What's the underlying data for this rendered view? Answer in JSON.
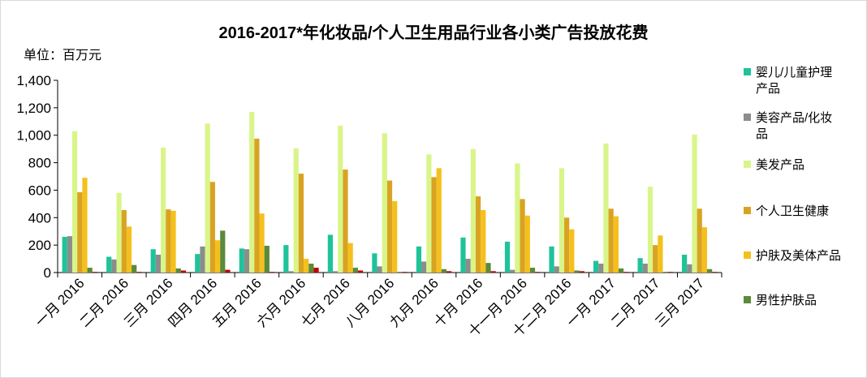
{
  "chart_data": {
    "type": "bar",
    "title": "2016-2017*年化妆品/个人卫生用品行业各小类广告投放花费",
    "unit_label": "单位：百万元",
    "ylim": [
      0,
      1400
    ],
    "y_ticks": [
      "0",
      "200",
      "400",
      "600",
      "800",
      "1,000",
      "1,200",
      "1,400"
    ],
    "y_tick_values": [
      0,
      200,
      400,
      600,
      800,
      1000,
      1200,
      1400
    ],
    "categories": [
      "一月 2016",
      "二月 2016",
      "三月 2016",
      "四月 2016",
      "五月 2016",
      "六月 2016",
      "七月 2016",
      "八月 2016",
      "九月 2016",
      "十月 2016",
      "十一月 2016",
      "十二月 2016",
      "一月 2017",
      "二月 2017",
      "三月 2017"
    ],
    "legend_position": "right",
    "grid": false,
    "series": [
      {
        "name": "婴儿/儿童护理产品",
        "legend_lines": [
          "婴儿/儿童护理",
          "产品"
        ],
        "color": "#1fc39a",
        "values": [
          260,
          115,
          170,
          135,
          175,
          200,
          275,
          140,
          190,
          255,
          225,
          190,
          85,
          105,
          130
        ]
      },
      {
        "name": "美容产品/化妆品",
        "legend_lines": [
          "美容产品/化妆",
          "品"
        ],
        "color": "#8c8c8c",
        "values": [
          265,
          95,
          130,
          190,
          170,
          10,
          10,
          45,
          80,
          100,
          20,
          45,
          65,
          65,
          60
        ]
      },
      {
        "name": "美发产品",
        "legend_lines": [
          "美发产品"
        ],
        "color": "#d9f58a",
        "values": [
          1030,
          580,
          910,
          1085,
          1170,
          905,
          1070,
          1015,
          860,
          900,
          795,
          760,
          940,
          625,
          1005
        ]
      },
      {
        "name": "个人卫生健康",
        "legend_lines": [
          "个人卫生健康"
        ],
        "color": "#d9a322",
        "values": [
          585,
          455,
          460,
          660,
          975,
          720,
          750,
          670,
          695,
          555,
          535,
          400,
          465,
          200,
          465
        ]
      },
      {
        "name": "护肤及美体产品",
        "legend_lines": [
          "护肤及美体产品"
        ],
        "color": "#f5c01e",
        "values": [
          690,
          335,
          450,
          235,
          430,
          100,
          215,
          520,
          760,
          455,
          415,
          315,
          410,
          270,
          330
        ]
      },
      {
        "name": "男性护肤品",
        "legend_lines": [
          "男性护肤品"
        ],
        "color": "#5a8a3a",
        "values": [
          35,
          55,
          30,
          305,
          195,
          65,
          35,
          5,
          25,
          70,
          35,
          15,
          30,
          5,
          25
        ]
      },
      {
        "name": "",
        "legend_lines": [],
        "color": "#c00000",
        "values": [
          5,
          5,
          15,
          20,
          5,
          35,
          15,
          5,
          10,
          10,
          5,
          10,
          5,
          5,
          5
        ]
      }
    ]
  }
}
